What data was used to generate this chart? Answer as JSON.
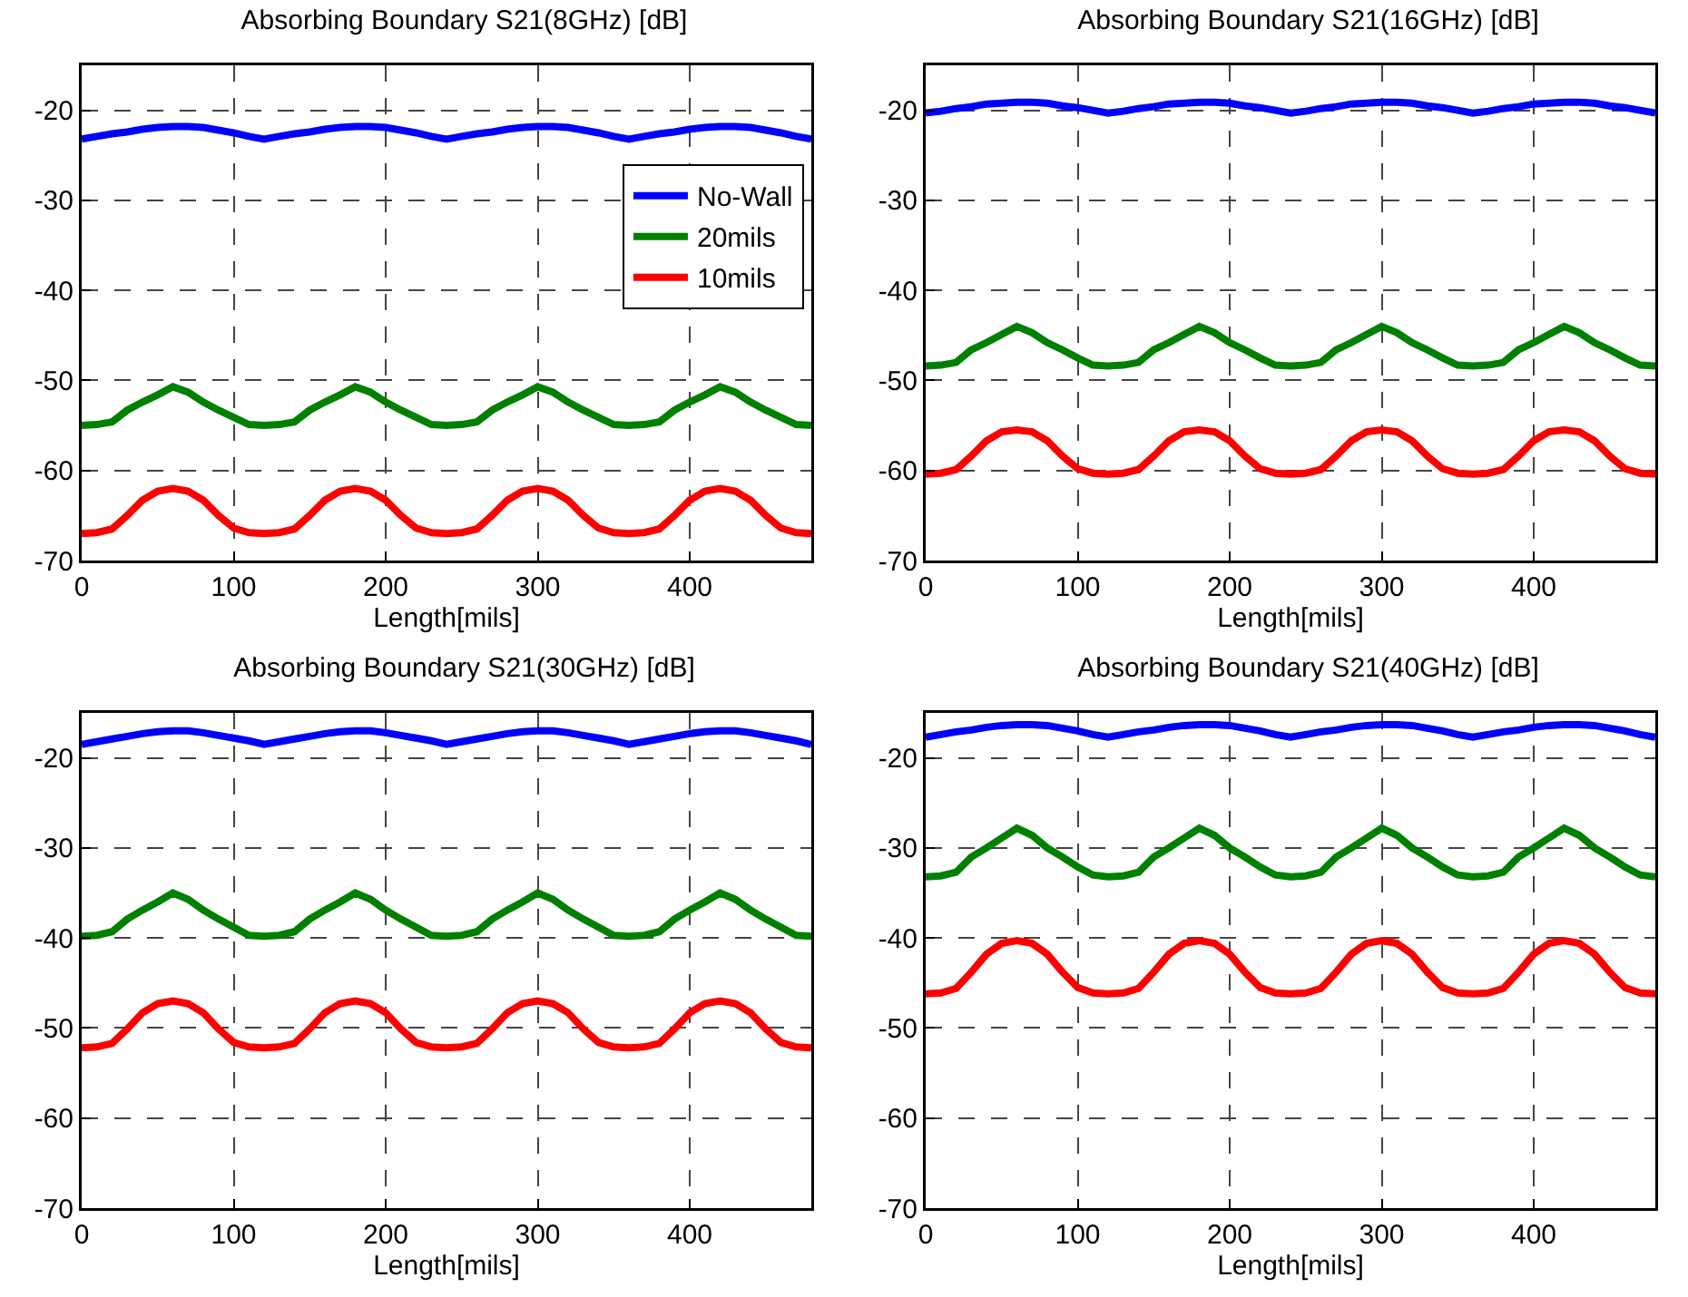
{
  "chart_data": [
    {
      "type": "line",
      "title": "Absorbing Boundary S21(8GHz) [dB]",
      "xlabel": "Length[mils]",
      "xlim": [
        0,
        480
      ],
      "xticks": [
        0,
        100,
        200,
        300,
        400
      ],
      "ylim": [
        -70,
        -15
      ],
      "yticks": [
        -70,
        -60,
        -50,
        -40,
        -30,
        -20
      ],
      "grid": true,
      "legend": "top right",
      "marker": "none",
      "line_style": "solid",
      "x": [
        0,
        10,
        20,
        30,
        40,
        50,
        60,
        70,
        80,
        90,
        100,
        110,
        120,
        130,
        140,
        150,
        160,
        170,
        180,
        190,
        200,
        210,
        220,
        230,
        240,
        250,
        260,
        270,
        280,
        290,
        300,
        310,
        320,
        330,
        340,
        350,
        360,
        370,
        380,
        390,
        400,
        410,
        420,
        430,
        440,
        450,
        460,
        470,
        480
      ],
      "series": [
        {
          "name": "No-Wall",
          "color": "#0000ff",
          "values": [
            -23.2,
            -22.9,
            -22.6,
            -22.4,
            -22.1,
            -21.9,
            -21.8,
            -21.8,
            -21.9,
            -22.2,
            -22.5,
            -22.9,
            -23.2,
            -22.9,
            -22.6,
            -22.4,
            -22.1,
            -21.9,
            -21.8,
            -21.8,
            -21.9,
            -22.2,
            -22.5,
            -22.9,
            -23.2,
            -22.9,
            -22.6,
            -22.4,
            -22.1,
            -21.9,
            -21.8,
            -21.8,
            -21.9,
            -22.2,
            -22.5,
            -22.9,
            -23.2,
            -22.9,
            -22.6,
            -22.4,
            -22.1,
            -21.9,
            -21.8,
            -21.8,
            -21.9,
            -22.2,
            -22.5,
            -22.9,
            -23.2
          ]
        },
        {
          "name": "20mils",
          "color": "#008000",
          "values": [
            -55,
            -54.9,
            -54.6,
            -53.3,
            -52.4,
            -51.6,
            -50.7,
            -51.3,
            -52.4,
            -53.3,
            -54.1,
            -54.9,
            -55,
            -54.9,
            -54.6,
            -53.3,
            -52.4,
            -51.6,
            -50.7,
            -51.3,
            -52.4,
            -53.3,
            -54.1,
            -54.9,
            -55,
            -54.9,
            -54.6,
            -53.3,
            -52.4,
            -51.6,
            -50.7,
            -51.3,
            -52.4,
            -53.3,
            -54.1,
            -54.9,
            -55,
            -54.9,
            -54.6,
            -53.3,
            -52.4,
            -51.6,
            -50.7,
            -51.3,
            -52.4,
            -53.3,
            -54.1,
            -54.9,
            -55
          ]
        },
        {
          "name": "10mils",
          "color": "#ff0000",
          "values": [
            -67,
            -66.9,
            -66.5,
            -65,
            -63.3,
            -62.3,
            -62,
            -62.3,
            -63.3,
            -65,
            -66.4,
            -66.9,
            -67,
            -66.9,
            -66.5,
            -65,
            -63.3,
            -62.3,
            -62,
            -62.3,
            -63.3,
            -65,
            -66.4,
            -66.9,
            -67,
            -66.9,
            -66.5,
            -65,
            -63.3,
            -62.3,
            -62,
            -62.3,
            -63.3,
            -65,
            -66.4,
            -66.9,
            -67,
            -66.9,
            -66.5,
            -65,
            -63.3,
            -62.3,
            -62,
            -62.3,
            -63.3,
            -65,
            -66.4,
            -66.9,
            -67
          ]
        }
      ]
    },
    {
      "type": "line",
      "title": "Absorbing Boundary S21(16GHz) [dB]",
      "xlabel": "Length[mils]",
      "xlim": [
        0,
        480
      ],
      "xticks": [
        0,
        100,
        200,
        300,
        400
      ],
      "ylim": [
        -70,
        -15
      ],
      "yticks": [
        -70,
        -60,
        -50,
        -40,
        -30,
        -20
      ],
      "grid": true,
      "marker": "none",
      "line_style": "solid",
      "x": [
        0,
        10,
        20,
        30,
        40,
        50,
        60,
        70,
        80,
        90,
        100,
        110,
        120,
        130,
        140,
        150,
        160,
        170,
        180,
        190,
        200,
        210,
        220,
        230,
        240,
        250,
        260,
        270,
        280,
        290,
        300,
        310,
        320,
        330,
        340,
        350,
        360,
        370,
        380,
        390,
        400,
        410,
        420,
        430,
        440,
        450,
        460,
        470,
        480
      ],
      "series": [
        {
          "color": "#0000ff",
          "values": [
            -20.3,
            -20.1,
            -19.8,
            -19.6,
            -19.3,
            -19.2,
            -19.1,
            -19.1,
            -19.2,
            -19.5,
            -19.7,
            -20.0,
            -20.3,
            -20.1,
            -19.8,
            -19.6,
            -19.3,
            -19.2,
            -19.1,
            -19.1,
            -19.2,
            -19.5,
            -19.7,
            -20.0,
            -20.3,
            -20.1,
            -19.8,
            -19.6,
            -19.3,
            -19.2,
            -19.1,
            -19.1,
            -19.2,
            -19.5,
            -19.7,
            -20.0,
            -20.3,
            -20.1,
            -19.8,
            -19.6,
            -19.3,
            -19.2,
            -19.1,
            -19.1,
            -19.2,
            -19.5,
            -19.7,
            -20.0,
            -20.3
          ]
        },
        {
          "color": "#008000",
          "values": [
            -48.4,
            -48.3,
            -48.0,
            -46.6,
            -45.8,
            -44.9,
            -44.0,
            -44.7,
            -45.8,
            -46.6,
            -47.5,
            -48.3,
            -48.4,
            -48.3,
            -48.0,
            -46.6,
            -45.8,
            -44.9,
            -44.0,
            -44.7,
            -45.8,
            -46.6,
            -47.5,
            -48.3,
            -48.4,
            -48.3,
            -48.0,
            -46.6,
            -45.8,
            -44.9,
            -44.0,
            -44.7,
            -45.8,
            -46.6,
            -47.5,
            -48.3,
            -48.4,
            -48.3,
            -48.0,
            -46.6,
            -45.8,
            -44.9,
            -44.0,
            -44.7,
            -45.8,
            -46.6,
            -47.5,
            -48.3,
            -48.4
          ]
        },
        {
          "color": "#ff0000",
          "values": [
            -60.4,
            -60.3,
            -59.9,
            -58.4,
            -56.7,
            -55.7,
            -55.5,
            -55.7,
            -56.7,
            -58.4,
            -59.8,
            -60.3,
            -60.4,
            -60.3,
            -59.9,
            -58.4,
            -56.7,
            -55.7,
            -55.5,
            -55.7,
            -56.7,
            -58.4,
            -59.8,
            -60.3,
            -60.4,
            -60.3,
            -59.9,
            -58.4,
            -56.7,
            -55.7,
            -55.5,
            -55.7,
            -56.7,
            -58.4,
            -59.8,
            -60.3,
            -60.4,
            -60.3,
            -59.9,
            -58.4,
            -56.7,
            -55.7,
            -55.5,
            -55.7,
            -56.7,
            -58.4,
            -59.8,
            -60.3,
            -60.4
          ]
        }
      ]
    },
    {
      "type": "line",
      "title": "Absorbing Boundary S21(30GHz) [dB]",
      "xlabel": "Length[mils]",
      "xlim": [
        0,
        480
      ],
      "xticks": [
        0,
        100,
        200,
        300,
        400
      ],
      "ylim": [
        -70,
        -15
      ],
      "yticks": [
        -70,
        -60,
        -50,
        -40,
        -30,
        -20
      ],
      "grid": true,
      "marker": "none",
      "line_style": "solid",
      "x": [
        0,
        10,
        20,
        30,
        40,
        50,
        60,
        70,
        80,
        90,
        100,
        110,
        120,
        130,
        140,
        150,
        160,
        170,
        180,
        190,
        200,
        210,
        220,
        230,
        240,
        250,
        260,
        270,
        280,
        290,
        300,
        310,
        320,
        330,
        340,
        350,
        360,
        370,
        380,
        390,
        400,
        410,
        420,
        430,
        440,
        450,
        460,
        470,
        480
      ],
      "series": [
        {
          "color": "#0000ff",
          "values": [
            -18.5,
            -18.2,
            -17.9,
            -17.6,
            -17.3,
            -17.1,
            -17.0,
            -17.0,
            -17.2,
            -17.5,
            -17.8,
            -18.1,
            -18.5,
            -18.2,
            -17.9,
            -17.6,
            -17.3,
            -17.1,
            -17.0,
            -17.0,
            -17.2,
            -17.5,
            -17.8,
            -18.1,
            -18.5,
            -18.2,
            -17.9,
            -17.6,
            -17.3,
            -17.1,
            -17.0,
            -17.0,
            -17.2,
            -17.5,
            -17.8,
            -18.1,
            -18.5,
            -18.2,
            -17.9,
            -17.6,
            -17.3,
            -17.1,
            -17.0,
            -17.0,
            -17.2,
            -17.5,
            -17.8,
            -18.1,
            -18.5
          ]
        },
        {
          "color": "#008000",
          "values": [
            -39.8,
            -39.7,
            -39.3,
            -37.9,
            -36.9,
            -36.0,
            -35.0,
            -35.7,
            -36.9,
            -37.9,
            -38.8,
            -39.7,
            -39.8,
            -39.7,
            -39.3,
            -37.9,
            -36.9,
            -36.0,
            -35.0,
            -35.7,
            -36.9,
            -37.9,
            -38.8,
            -39.7,
            -39.8,
            -39.7,
            -39.3,
            -37.9,
            -36.9,
            -36.0,
            -35.0,
            -35.7,
            -36.9,
            -37.9,
            -38.8,
            -39.7,
            -39.8,
            -39.7,
            -39.3,
            -37.9,
            -36.9,
            -36.0,
            -35.0,
            -35.7,
            -36.9,
            -37.9,
            -38.8,
            -39.7,
            -39.8
          ]
        },
        {
          "color": "#ff0000",
          "values": [
            -52.2,
            -52.1,
            -51.7,
            -50.1,
            -48.3,
            -47.3,
            -47.0,
            -47.3,
            -48.3,
            -50.1,
            -51.6,
            -52.1,
            -52.2,
            -52.1,
            -51.7,
            -50.1,
            -48.3,
            -47.3,
            -47.0,
            -47.3,
            -48.3,
            -50.1,
            -51.6,
            -52.1,
            -52.2,
            -52.1,
            -51.7,
            -50.1,
            -48.3,
            -47.3,
            -47.0,
            -47.3,
            -48.3,
            -50.1,
            -51.6,
            -52.1,
            -52.2,
            -52.1,
            -51.7,
            -50.1,
            -48.3,
            -47.3,
            -47.0,
            -47.3,
            -48.3,
            -50.1,
            -51.6,
            -52.1,
            -52.2
          ]
        }
      ]
    },
    {
      "type": "line",
      "title": "Absorbing Boundary S21(40GHz) [dB]",
      "xlabel": "Length[mils]",
      "xlim": [
        0,
        480
      ],
      "xticks": [
        0,
        100,
        200,
        300,
        400
      ],
      "ylim": [
        -70,
        -15
      ],
      "yticks": [
        -70,
        -60,
        -50,
        -40,
        -30,
        -20
      ],
      "grid": true,
      "marker": "none",
      "line_style": "solid",
      "x": [
        0,
        10,
        20,
        30,
        40,
        50,
        60,
        70,
        80,
        90,
        100,
        110,
        120,
        130,
        140,
        150,
        160,
        170,
        180,
        190,
        200,
        210,
        220,
        230,
        240,
        250,
        260,
        270,
        280,
        290,
        300,
        310,
        320,
        330,
        340,
        350,
        360,
        370,
        380,
        390,
        400,
        410,
        420,
        430,
        440,
        450,
        460,
        470,
        480
      ],
      "series": [
        {
          "color": "#0000ff",
          "values": [
            -17.7,
            -17.4,
            -17.1,
            -16.9,
            -16.6,
            -16.4,
            -16.3,
            -16.3,
            -16.4,
            -16.7,
            -17.0,
            -17.4,
            -17.7,
            -17.4,
            -17.1,
            -16.9,
            -16.6,
            -16.4,
            -16.3,
            -16.3,
            -16.4,
            -16.7,
            -17.0,
            -17.4,
            -17.7,
            -17.4,
            -17.1,
            -16.9,
            -16.6,
            -16.4,
            -16.3,
            -16.3,
            -16.4,
            -16.7,
            -17.0,
            -17.4,
            -17.7,
            -17.4,
            -17.1,
            -16.9,
            -16.6,
            -16.4,
            -16.3,
            -16.3,
            -16.4,
            -16.7,
            -17.0,
            -17.4,
            -17.7
          ]
        },
        {
          "color": "#008000",
          "values": [
            -33.2,
            -33.1,
            -32.7,
            -31.0,
            -30.0,
            -28.9,
            -27.8,
            -28.6,
            -30.0,
            -31.0,
            -32.1,
            -33.0,
            -33.2,
            -33.1,
            -32.7,
            -31.0,
            -30.0,
            -28.9,
            -27.8,
            -28.6,
            -30.0,
            -31.0,
            -32.1,
            -33.0,
            -33.2,
            -33.1,
            -32.7,
            -31.0,
            -30.0,
            -28.9,
            -27.8,
            -28.6,
            -30.0,
            -31.0,
            -32.1,
            -33.0,
            -33.2,
            -33.1,
            -32.7,
            -31.0,
            -30.0,
            -28.9,
            -27.8,
            -28.6,
            -30.0,
            -31.0,
            -32.1,
            -33.0,
            -33.2
          ]
        },
        {
          "color": "#ff0000",
          "values": [
            -46.2,
            -46.1,
            -45.6,
            -43.8,
            -41.8,
            -40.6,
            -40.3,
            -40.6,
            -41.8,
            -43.8,
            -45.5,
            -46.1,
            -46.2,
            -46.1,
            -45.6,
            -43.8,
            -41.8,
            -40.6,
            -40.3,
            -40.6,
            -41.8,
            -43.8,
            -45.5,
            -46.1,
            -46.2,
            -46.1,
            -45.6,
            -43.8,
            -41.8,
            -40.6,
            -40.3,
            -40.6,
            -41.8,
            -43.8,
            -45.5,
            -46.1,
            -46.2,
            -46.1,
            -45.6,
            -43.8,
            -41.8,
            -40.6,
            -40.3,
            -40.6,
            -41.8,
            -43.8,
            -45.5,
            -46.1,
            -46.2
          ]
        }
      ]
    }
  ]
}
